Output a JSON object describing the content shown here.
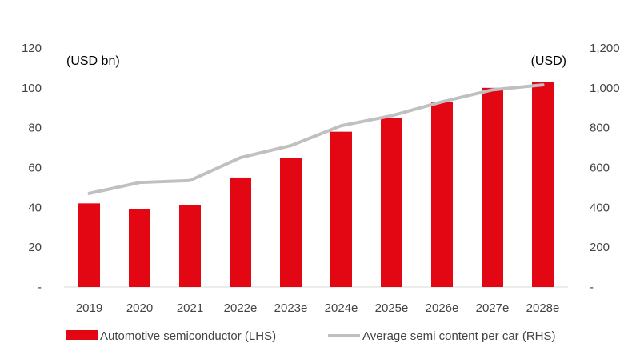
{
  "chart_data": {
    "type": "bar",
    "categories": [
      "2019",
      "2020",
      "2021",
      "2022e",
      "2023e",
      "2024e",
      "2025e",
      "2026e",
      "2027e",
      "2028e"
    ],
    "series": [
      {
        "name": "Automotive semiconductor (LHS)",
        "type": "bar",
        "axis": "left",
        "color": "#e30613",
        "values": [
          42,
          39,
          41,
          55,
          65,
          78,
          85,
          93,
          100,
          103
        ]
      },
      {
        "name": "Average semi content per car (RHS)",
        "type": "line",
        "axis": "right",
        "color": "#c0c0c0",
        "values": [
          470,
          525,
          535,
          650,
          710,
          810,
          860,
          930,
          990,
          1015
        ]
      }
    ],
    "left_axis": {
      "unit": "(USD bn)",
      "ylim": [
        0,
        120
      ],
      "ticks": [
        {
          "value": 0,
          "label": "-"
        },
        {
          "value": 20,
          "label": "20"
        },
        {
          "value": 40,
          "label": "40"
        },
        {
          "value": 60,
          "label": "60"
        },
        {
          "value": 80,
          "label": "80"
        },
        {
          "value": 100,
          "label": "100"
        },
        {
          "value": 120,
          "label": "120"
        }
      ]
    },
    "right_axis": {
      "unit": "(USD)",
      "ylim": [
        0,
        1200
      ],
      "ticks": [
        {
          "value": 0,
          "label": "-"
        },
        {
          "value": 200,
          "label": "200"
        },
        {
          "value": 400,
          "label": "400"
        },
        {
          "value": 600,
          "label": "600"
        },
        {
          "value": 800,
          "label": "800"
        },
        {
          "value": 1000,
          "label": "1,000"
        },
        {
          "value": 1200,
          "label": "1,200"
        }
      ]
    },
    "grid": false,
    "legend_position": "bottom"
  }
}
